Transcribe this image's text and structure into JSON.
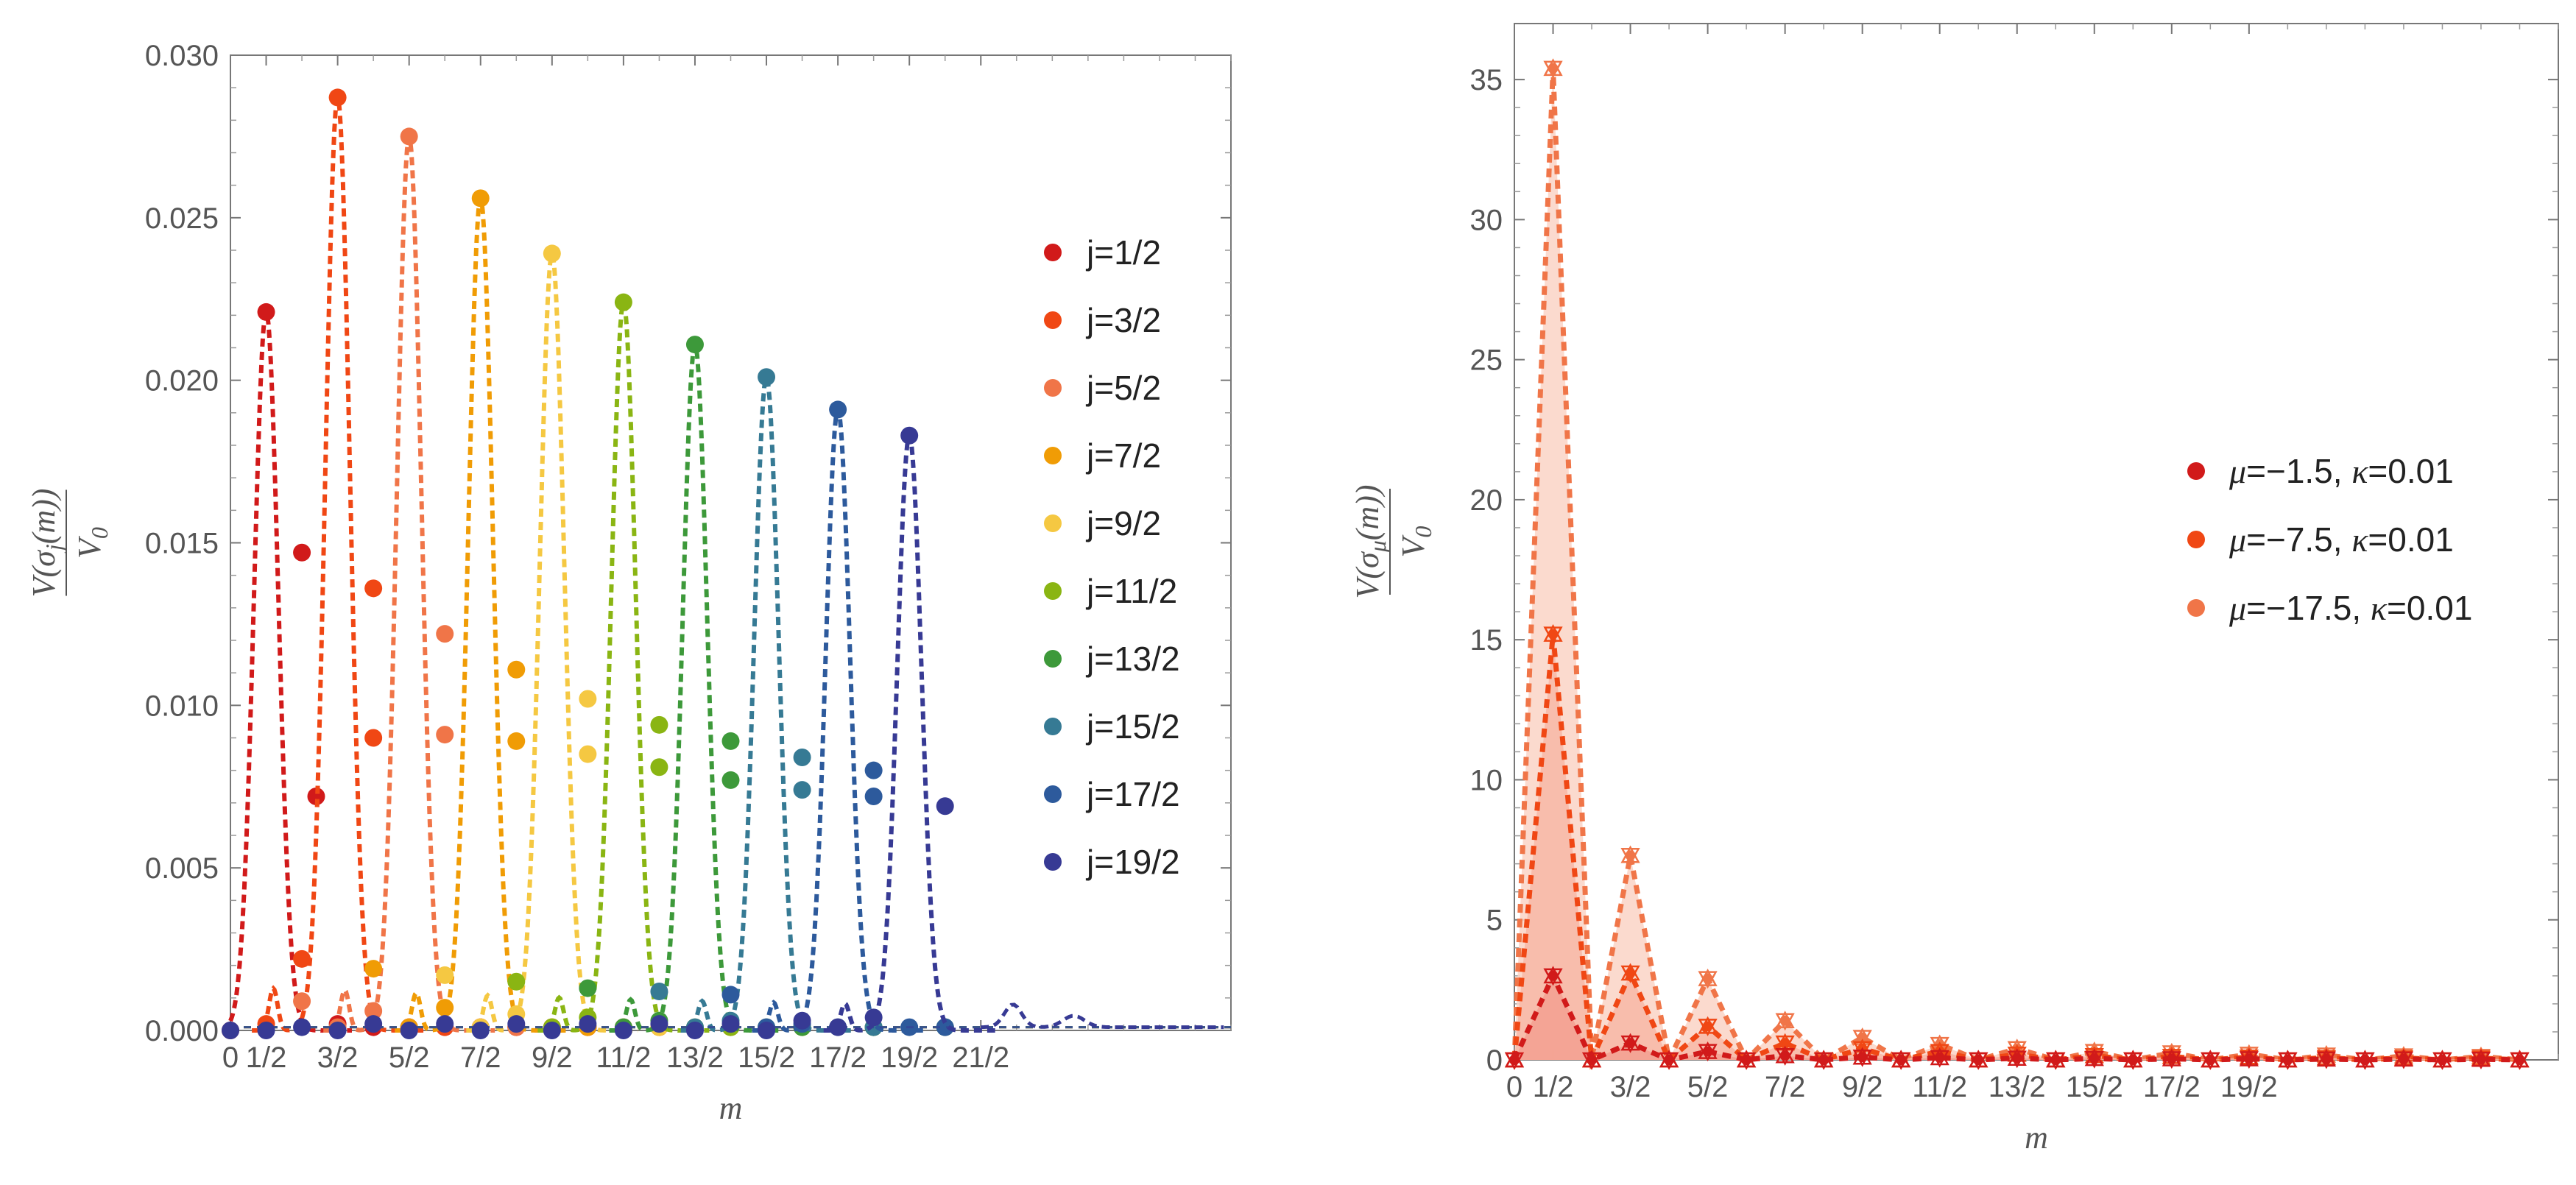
{
  "chart_data": [
    {
      "type": "line",
      "xlabel": "m",
      "ylabel": {
        "numerator": "V(σ",
        "sub": "j",
        "after": "(m))",
        "denominator": "V",
        "den_sub": "0"
      },
      "xlim": [
        0,
        14
      ],
      "ylim": [
        0,
        0.03
      ],
      "xticks": [
        {
          "v": 0,
          "label": "0"
        },
        {
          "v": 0.5,
          "label": "1/2"
        },
        {
          "v": 1.5,
          "label": "3/2"
        },
        {
          "v": 2.5,
          "label": "5/2"
        },
        {
          "v": 3.5,
          "label": "7/2"
        },
        {
          "v": 4.5,
          "label": "9/2"
        },
        {
          "v": 5.5,
          "label": "11/2"
        },
        {
          "v": 6.5,
          "label": "13/2"
        },
        {
          "v": 7.5,
          "label": "15/2"
        },
        {
          "v": 8.5,
          "label": "17/2"
        },
        {
          "v": 9.5,
          "label": "19/2"
        },
        {
          "v": 10.5,
          "label": "21/2"
        }
      ],
      "yticks": [
        {
          "v": 0,
          "label": "0.000"
        },
        {
          "v": 0.005,
          "label": "0.005"
        },
        {
          "v": 0.01,
          "label": "0.010"
        },
        {
          "v": 0.015,
          "label": "0.015"
        },
        {
          "v": 0.02,
          "label": "0.020"
        },
        {
          "v": 0.025,
          "label": "0.025"
        },
        {
          "v": 0.03,
          "label": "0.030"
        }
      ],
      "legend_position": "center-right",
      "series": [
        {
          "name": "j=1/2",
          "color": "#d11a1a",
          "peak_m": 0.5,
          "peak": 0.0221,
          "points": [
            [
              0,
              0
            ],
            [
              0.5,
              0.0221
            ],
            [
              1,
              0.0147
            ],
            [
              1.2,
              0.0072
            ],
            [
              1.5,
              0.0002
            ],
            [
              2,
              0.0001
            ],
            [
              2.5,
              0.0001
            ],
            [
              3,
              0.0001
            ],
            [
              3.5,
              0.0001
            ],
            [
              4,
              0.0001
            ],
            [
              4.5,
              0.0001
            ],
            [
              5,
              0.0001
            ],
            [
              5.5,
              0.0001
            ]
          ]
        },
        {
          "name": "j=3/2",
          "color": "#f04714",
          "peak_m": 1.5,
          "peak": 0.0287,
          "points": [
            [
              0.5,
              0.0002
            ],
            [
              1,
              0.0022
            ],
            [
              1.5,
              0.0287
            ],
            [
              2,
              0.0136
            ],
            [
              2,
              0.009
            ],
            [
              2.5,
              0.0001
            ],
            [
              3,
              0.0001
            ],
            [
              3.5,
              0.0001
            ],
            [
              4,
              0.0001
            ],
            [
              5,
              0.0001
            ],
            [
              6,
              0.0001
            ]
          ]
        },
        {
          "name": "j=5/2",
          "color": "#f07548",
          "peak_m": 2.5,
          "peak": 0.0275,
          "points": [
            [
              1,
              0.0009
            ],
            [
              1.5,
              0.0001
            ],
            [
              2,
              0.0006
            ],
            [
              2.5,
              0.0275
            ],
            [
              3,
              0.0122
            ],
            [
              3,
              0.0091
            ],
            [
              3.5,
              0.0001
            ],
            [
              4,
              0.0001
            ],
            [
              5,
              0.0001
            ],
            [
              6,
              0.0001
            ],
            [
              7,
              0.0001
            ]
          ]
        },
        {
          "name": "j=7/2",
          "color": "#f09c05",
          "peak_m": 3.5,
          "peak": 0.0256,
          "points": [
            [
              2,
              0.0019
            ],
            [
              2.5,
              0.0001
            ],
            [
              3,
              0.0007
            ],
            [
              3.5,
              0.0256
            ],
            [
              4,
              0.0111
            ],
            [
              4,
              0.0089
            ],
            [
              4.5,
              0.0001
            ],
            [
              5,
              0.0001
            ],
            [
              6,
              0.0001
            ],
            [
              7,
              0.0001
            ],
            [
              8,
              0.0001
            ]
          ]
        },
        {
          "name": "j=9/2",
          "color": "#f5c842",
          "peak_m": 4.5,
          "peak": 0.0239,
          "points": [
            [
              3,
              0.0017
            ],
            [
              3.5,
              0.0001
            ],
            [
              4,
              0.0005
            ],
            [
              4.5,
              0.0239
            ],
            [
              5,
              0.0102
            ],
            [
              5,
              0.0085
            ],
            [
              5.5,
              0.0001
            ],
            [
              6,
              0.0001
            ],
            [
              7,
              0.0001
            ],
            [
              8,
              0.0001
            ],
            [
              9,
              0.0001
            ]
          ]
        },
        {
          "name": "j=11/2",
          "color": "#8ab513",
          "peak_m": 5.5,
          "peak": 0.0224,
          "points": [
            [
              4,
              0.0015
            ],
            [
              4.5,
              0.0001
            ],
            [
              5,
              0.0004
            ],
            [
              5.5,
              0.0224
            ],
            [
              6,
              0.0094
            ],
            [
              6,
              0.0081
            ],
            [
              6.5,
              0.0001
            ],
            [
              7,
              0.0001
            ],
            [
              8,
              0.0001
            ],
            [
              9,
              0.0001
            ],
            [
              10,
              0.0001
            ]
          ]
        },
        {
          "name": "j=13/2",
          "color": "#3d993a",
          "peak_m": 6.5,
          "peak": 0.0211,
          "points": [
            [
              5,
              0.0013
            ],
            [
              5.5,
              0.0001
            ],
            [
              6,
              0.0003
            ],
            [
              6.5,
              0.0211
            ],
            [
              7,
              0.0089
            ],
            [
              7,
              0.0077
            ],
            [
              7.5,
              0.0001
            ],
            [
              8,
              0.0001
            ],
            [
              9,
              0.0001
            ],
            [
              10,
              0.0001
            ]
          ]
        },
        {
          "name": "j=15/2",
          "color": "#367a94",
          "peak_m": 7.5,
          "peak": 0.0201,
          "points": [
            [
              6,
              0.0012
            ],
            [
              6.5,
              0.0001
            ],
            [
              7,
              0.0003
            ],
            [
              7.5,
              0.0201
            ],
            [
              8,
              0.0084
            ],
            [
              8,
              0.0074
            ],
            [
              8.5,
              0.0001
            ],
            [
              9,
              0.0001
            ],
            [
              10,
              0.0001
            ]
          ]
        },
        {
          "name": "j=17/2",
          "color": "#2d5a9c",
          "peak_m": 8.5,
          "peak": 0.0191,
          "points": [
            [
              7,
              0.0011
            ],
            [
              7.5,
              0.0001
            ],
            [
              8,
              0.0002
            ],
            [
              8.5,
              0.0191
            ],
            [
              9,
              0.008
            ],
            [
              9,
              0.0072
            ],
            [
              9.5,
              0.0001
            ],
            [
              10,
              0.0001
            ]
          ]
        },
        {
          "name": "j=19/2",
          "color": "#373a94",
          "peak_m": 9.5,
          "peak": 0.0183,
          "points": [
            [
              0,
              0
            ],
            [
              0.5,
              0
            ],
            [
              1,
              0.0001
            ],
            [
              1.5,
              0
            ],
            [
              2,
              0.0002
            ],
            [
              2.5,
              0
            ],
            [
              3,
              0.0002
            ],
            [
              3.5,
              0
            ],
            [
              4,
              0.0002
            ],
            [
              4.5,
              0
            ],
            [
              5,
              0.0002
            ],
            [
              5.5,
              0
            ],
            [
              6,
              0.0002
            ],
            [
              6.5,
              0
            ],
            [
              7,
              0.0002
            ],
            [
              7.5,
              0
            ],
            [
              8,
              0.0003
            ],
            [
              8.5,
              0.0001
            ],
            [
              9,
              0.0004
            ],
            [
              9.5,
              0.0183
            ],
            [
              10,
              0.0069
            ]
          ]
        }
      ]
    },
    {
      "type": "area",
      "xlabel": "m",
      "ylabel": {
        "numerator": "V(σ",
        "sub": "μ",
        "after": "(m))",
        "denominator": "V",
        "den_sub": "0"
      },
      "xlim": [
        0,
        13.5
      ],
      "ylim": [
        0,
        37
      ],
      "xticks": [
        {
          "v": 0,
          "label": "0"
        },
        {
          "v": 0.5,
          "label": "1/2"
        },
        {
          "v": 1.5,
          "label": "3/2"
        },
        {
          "v": 2.5,
          "label": "5/2"
        },
        {
          "v": 3.5,
          "label": "7/2"
        },
        {
          "v": 4.5,
          "label": "9/2"
        },
        {
          "v": 5.5,
          "label": "11/2"
        },
        {
          "v": 6.5,
          "label": "13/2"
        },
        {
          "v": 7.5,
          "label": "15/2"
        },
        {
          "v": 8.5,
          "label": "17/2"
        },
        {
          "v": 9.5,
          "label": "19/2"
        }
      ],
      "yticks": [
        {
          "v": 0,
          "label": "0"
        },
        {
          "v": 5,
          "label": "5"
        },
        {
          "v": 10,
          "label": "10"
        },
        {
          "v": 15,
          "label": "15"
        },
        {
          "v": 20,
          "label": "20"
        },
        {
          "v": 25,
          "label": "25"
        },
        {
          "v": 30,
          "label": "30"
        },
        {
          "v": 35,
          "label": "35"
        }
      ],
      "legend_position": "center-right",
      "series": [
        {
          "name_mu": "μ",
          "name_rest1": "=−1.5, ",
          "name_kappa": "κ",
          "name_rest2": "=0.01",
          "color": "#d11a1a",
          "fill": "#f3a090",
          "x": [
            0,
            0.5,
            1,
            1.5,
            2,
            2.5,
            3,
            3.5,
            4,
            4.5,
            5,
            5.5,
            6,
            6.5,
            7,
            7.5,
            8,
            8.5,
            9,
            9.5,
            10,
            10.5,
            11,
            11.5,
            12,
            12.5,
            13
          ],
          "values": [
            0,
            3,
            0,
            0.6,
            0,
            0.3,
            0,
            0.15,
            0,
            0.1,
            0,
            0.08,
            0,
            0.06,
            0,
            0.05,
            0,
            0.04,
            0,
            0.04,
            0,
            0.03,
            0,
            0.03,
            0,
            0.02,
            0
          ]
        },
        {
          "name_mu": "μ",
          "name_rest1": "=−7.5, ",
          "name_kappa": "κ",
          "name_rest2": "=0.01",
          "color": "#f04714",
          "fill": "#f7b7a6",
          "x": [
            0,
            0.5,
            1,
            1.5,
            2,
            2.5,
            3,
            3.5,
            4,
            4.5,
            5,
            5.5,
            6,
            6.5,
            7,
            7.5,
            8,
            8.5,
            9,
            9.5,
            10,
            10.5,
            11,
            11.5,
            12,
            12.5,
            13
          ],
          "values": [
            0,
            15.2,
            0,
            3.1,
            0,
            1.2,
            0,
            0.6,
            0,
            0.4,
            0,
            0.3,
            0,
            0.2,
            0,
            0.15,
            0,
            0.12,
            0,
            0.1,
            0,
            0.08,
            0,
            0.07,
            0,
            0.06,
            0
          ]
        },
        {
          "name_mu": "μ",
          "name_rest1": "=−17.5, ",
          "name_kappa": "κ",
          "name_rest2": "=0.01",
          "color": "#f07548",
          "fill": "#fad3c6",
          "x": [
            0,
            0.5,
            1,
            1.5,
            2,
            2.5,
            3,
            3.5,
            4,
            4.5,
            5,
            5.5,
            6,
            6.5,
            7,
            7.5,
            8,
            8.5,
            9,
            9.5,
            10,
            10.5,
            11,
            11.5,
            12,
            12.5,
            13
          ],
          "values": [
            0,
            35.4,
            0,
            7.3,
            0,
            2.9,
            0,
            1.4,
            0,
            0.8,
            0,
            0.55,
            0,
            0.4,
            0,
            0.3,
            0,
            0.25,
            0,
            0.2,
            0,
            0.17,
            0,
            0.14,
            0,
            0.12,
            0
          ]
        }
      ]
    }
  ]
}
